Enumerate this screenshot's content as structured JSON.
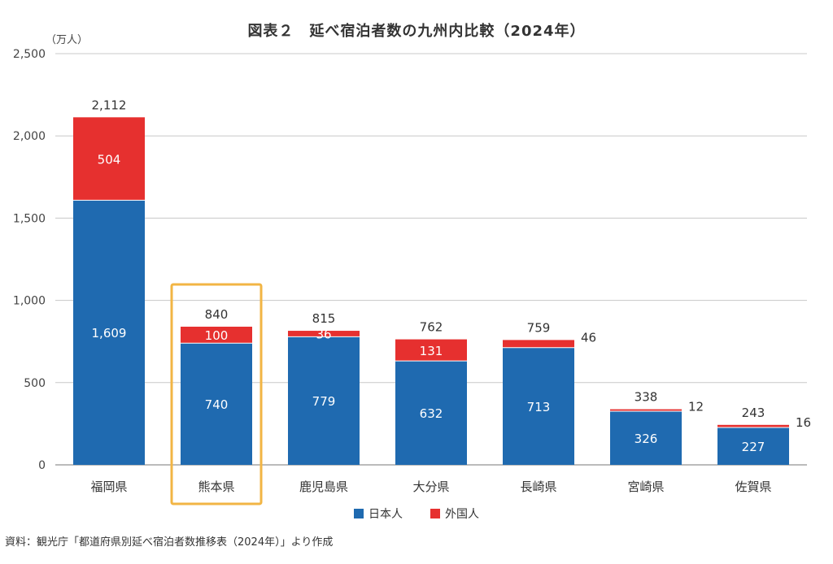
{
  "chart_data": {
    "type": "bar",
    "stacked": true,
    "title": "図表２　延べ宿泊者数の九州内比較（2024年）",
    "unit_label": "（万人）",
    "categories": [
      "福岡県",
      "熊本県",
      "鹿児島県",
      "大分県",
      "長崎県",
      "宮崎県",
      "佐賀県"
    ],
    "series": [
      {
        "name": "日本人",
        "color": "#1f6ab0",
        "values": [
          1609,
          740,
          779,
          632,
          713,
          326,
          227
        ]
      },
      {
        "name": "外国人",
        "color": "#e6302f",
        "values": [
          504,
          100,
          36,
          131,
          46,
          12,
          16
        ]
      }
    ],
    "totals": [
      2112,
      840,
      815,
      762,
      759,
      338,
      243
    ],
    "total_labels": [
      "2,112",
      "840",
      "815",
      "762",
      "759",
      "338",
      "243"
    ],
    "series_labels": {
      "日本人": [
        "1,609",
        "740",
        "779",
        "632",
        "713",
        "326",
        "227"
      ],
      "外国人": [
        "504",
        "100",
        "36",
        "131",
        "46",
        "12",
        "16"
      ]
    },
    "foreign_label_outside": [
      false,
      false,
      false,
      false,
      true,
      true,
      true
    ],
    "highlighted_category": "熊本県",
    "highlight_color": "#f2b544",
    "ylim": [
      0,
      2500
    ],
    "yticks": [
      0,
      500,
      1000,
      1500,
      2000,
      2500
    ],
    "ytick_labels": [
      "0",
      "500",
      "1,000",
      "1,500",
      "2,000",
      "2,500"
    ],
    "grid": true,
    "legend_position": "bottom-center"
  },
  "legend": [
    {
      "label": "日本人",
      "color": "#1f6ab0"
    },
    {
      "label": "外国人",
      "color": "#e6302f"
    }
  ],
  "source": "資料：観光庁「都道府県別延べ宿泊者数推移表（2024年）」より作成"
}
